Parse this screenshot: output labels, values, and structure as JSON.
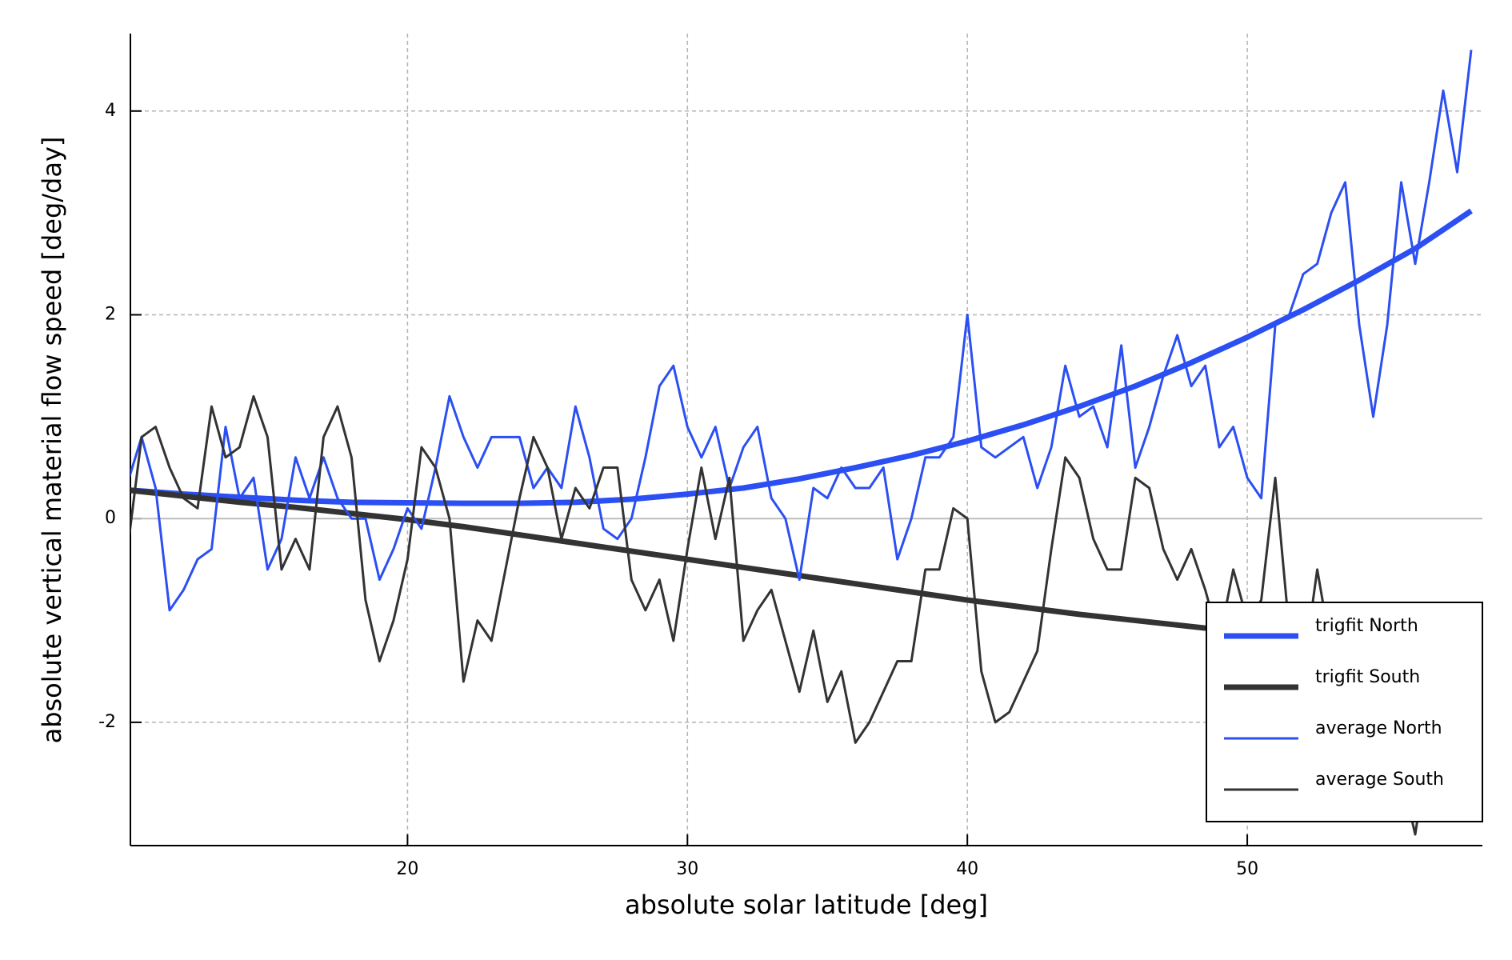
{
  "chart_data": {
    "type": "line",
    "x_label": "absolute solar latitude [deg]",
    "y_label": "absolute vertical material flow speed [deg/day]",
    "xlim": [
      10.1,
      58.4
    ],
    "ylim": [
      -3.21,
      4.76
    ],
    "xticks": [
      20,
      30,
      40,
      50
    ],
    "yticks": [
      -2,
      0,
      2,
      4
    ],
    "grid": true,
    "legend": "lower right",
    "series": [
      {
        "name": "trigfit North",
        "color": "#2b4ff2",
        "line_width": 7,
        "x": [
          10,
          12,
          14,
          16,
          18,
          20,
          22,
          24,
          26,
          28,
          30,
          32,
          34,
          36,
          38,
          40,
          42,
          44,
          46,
          48,
          50,
          52,
          54,
          56,
          58
        ],
        "values": [
          0.28,
          0.24,
          0.21,
          0.18,
          0.16,
          0.155,
          0.15,
          0.15,
          0.16,
          0.19,
          0.24,
          0.3,
          0.39,
          0.5,
          0.62,
          0.76,
          0.92,
          1.1,
          1.3,
          1.53,
          1.78,
          2.05,
          2.34,
          2.65,
          3.02
        ]
      },
      {
        "name": "trigfit South",
        "color": "#333333",
        "line_width": 7,
        "x": [
          10,
          12,
          14,
          16,
          18,
          20,
          22,
          24,
          26,
          28,
          30,
          32,
          34,
          36,
          38,
          40,
          42,
          44,
          46,
          48,
          50,
          52,
          54,
          56,
          58
        ],
        "values": [
          0.28,
          0.22,
          0.16,
          0.11,
          0.05,
          -0.01,
          -0.08,
          -0.16,
          -0.24,
          -0.32,
          -0.4,
          -0.48,
          -0.56,
          -0.64,
          -0.72,
          -0.8,
          -0.87,
          -0.94,
          -1.0,
          -1.06,
          -1.12,
          -1.17,
          -1.22,
          -1.27,
          -1.32
        ]
      },
      {
        "name": "average North",
        "color": "#2b4ff2",
        "line_width": 3,
        "x": [
          10,
          10.5,
          11,
          11.5,
          12,
          12.5,
          13,
          13.5,
          14,
          14.5,
          15,
          15.5,
          16,
          16.5,
          17,
          17.5,
          18,
          18.5,
          19,
          19.5,
          20,
          20.5,
          21,
          21.5,
          22,
          22.5,
          23,
          23.5,
          24,
          24.5,
          25,
          25.5,
          26,
          26.5,
          27,
          27.5,
          28,
          28.5,
          29,
          29.5,
          30,
          30.5,
          31,
          31.5,
          32,
          32.5,
          33,
          33.5,
          34,
          34.5,
          35,
          35.5,
          36,
          36.5,
          37,
          37.5,
          38,
          38.5,
          39,
          39.5,
          40,
          40.5,
          41,
          41.5,
          42,
          42.5,
          43,
          43.5,
          44,
          44.5,
          45,
          45.5,
          46,
          46.5,
          47,
          47.5,
          48,
          48.5,
          49,
          49.5,
          50,
          50.5,
          51,
          51.5,
          52,
          52.5,
          53,
          53.5,
          54,
          54.5,
          55,
          55.5,
          56,
          56.5,
          57,
          57.5,
          58
        ],
        "values": [
          0.35,
          0.8,
          0.3,
          -0.9,
          -0.7,
          -0.4,
          -0.3,
          0.9,
          0.2,
          0.4,
          -0.5,
          -0.2,
          0.6,
          0.2,
          0.6,
          0.2,
          0.0,
          0.0,
          -0.6,
          -0.3,
          0.1,
          -0.1,
          0.5,
          1.2,
          0.8,
          0.5,
          0.8,
          0.8,
          0.8,
          0.3,
          0.5,
          0.3,
          1.1,
          0.6,
          -0.1,
          -0.2,
          0.0,
          0.6,
          1.3,
          1.5,
          0.9,
          0.6,
          0.9,
          0.3,
          0.7,
          0.9,
          0.2,
          0.0,
          -0.6,
          0.3,
          0.2,
          0.5,
          0.3,
          0.3,
          0.5,
          -0.4,
          0.0,
          0.6,
          0.6,
          0.8,
          2.0,
          0.7,
          0.6,
          0.7,
          0.8,
          0.3,
          0.7,
          1.5,
          1.0,
          1.1,
          0.7,
          1.7,
          0.5,
          0.9,
          1.4,
          1.8,
          1.3,
          1.5,
          0.7,
          0.9,
          0.4,
          0.2,
          1.9,
          2.0,
          2.4,
          2.5,
          3.0,
          3.3,
          1.9,
          1.0,
          1.9,
          3.3,
          2.5,
          3.3,
          4.2,
          3.4,
          4.6
        ]
      },
      {
        "name": "average South",
        "color": "#333333",
        "line_width": 3,
        "x": [
          10,
          10.5,
          11,
          11.5,
          12,
          12.5,
          13,
          13.5,
          14,
          14.5,
          15,
          15.5,
          16,
          16.5,
          17,
          17.5,
          18,
          18.5,
          19,
          19.5,
          20,
          20.5,
          21,
          21.5,
          22,
          22.5,
          23,
          23.5,
          24,
          24.5,
          25,
          25.5,
          26,
          26.5,
          27,
          27.5,
          28,
          28.5,
          29,
          29.5,
          30,
          30.5,
          31,
          31.5,
          32,
          32.5,
          33,
          33.5,
          34,
          34.5,
          35,
          35.5,
          36,
          36.5,
          37,
          37.5,
          38,
          38.5,
          39,
          39.5,
          40,
          40.5,
          41,
          41.5,
          42,
          42.5,
          43,
          43.5,
          44,
          44.5,
          45,
          45.5,
          46,
          46.5,
          47,
          47.5,
          48,
          48.5,
          49,
          49.5,
          50,
          50.5,
          51,
          51.5,
          52,
          52.5,
          53,
          53.5,
          54,
          54.5,
          55,
          55.5,
          56,
          56.5,
          57,
          57.5,
          58
        ],
        "values": [
          -0.3,
          0.8,
          0.9,
          0.5,
          0.2,
          0.1,
          1.1,
          0.6,
          0.7,
          1.2,
          0.8,
          -0.5,
          -0.2,
          -0.5,
          0.8,
          1.1,
          0.6,
          -0.8,
          -1.4,
          -1.0,
          -0.4,
          0.7,
          0.5,
          0.0,
          -1.6,
          -1.0,
          -1.2,
          -0.5,
          0.2,
          0.8,
          0.5,
          -0.2,
          0.3,
          0.1,
          0.5,
          0.5,
          -0.6,
          -0.9,
          -0.6,
          -1.2,
          -0.3,
          0.5,
          -0.2,
          0.4,
          -1.2,
          -0.9,
          -0.7,
          -1.2,
          -1.7,
          -1.1,
          -1.8,
          -1.5,
          -2.2,
          -2.0,
          -1.7,
          -1.4,
          -1.4,
          -0.5,
          -0.5,
          0.1,
          0.0,
          -1.5,
          -2.0,
          -1.9,
          -1.6,
          -1.3,
          -0.3,
          0.6,
          0.4,
          -0.2,
          -0.5,
          -0.5,
          0.4,
          0.3,
          -0.3,
          -0.6,
          -0.3,
          -0.7,
          -1.2,
          -0.5,
          -1.0,
          -0.8,
          0.4,
          -1.1,
          -1.5,
          -0.5,
          -1.3,
          -1.5,
          -1.8,
          -1.5,
          -2.2,
          -2.5,
          -3.1,
          -2.2,
          -1.8,
          -1.0,
          -2.1
        ]
      }
    ]
  }
}
